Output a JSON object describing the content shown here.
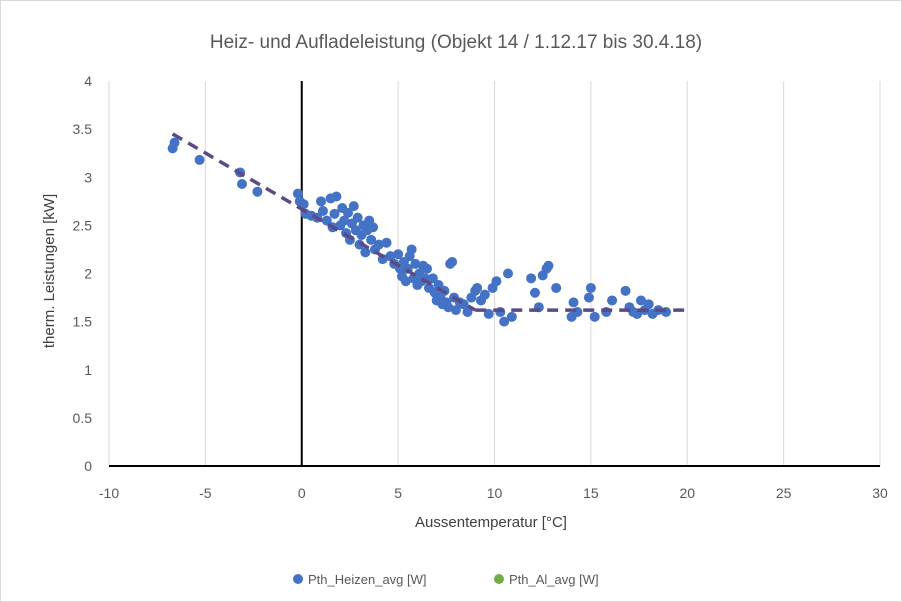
{
  "chart_data": {
    "type": "scatter",
    "title": "Heiz- und Aufladeleistung (Objekt 14 / 1.12.17 bis 30.4.18)",
    "xlabel": "Aussentemperatur [°C]",
    "ylabel": "therm. Leistungen [kW]",
    "xlim": [
      -10,
      30
    ],
    "ylim": [
      0,
      4
    ],
    "x_ticks": [
      "-10",
      "-5",
      "0",
      "5",
      "10",
      "15",
      "20",
      "25",
      "30"
    ],
    "y_ticks": [
      "0",
      "0.5",
      "1",
      "1.5",
      "2",
      "2.5",
      "3",
      "3.5",
      "4"
    ],
    "grid": "vertical",
    "legend_position": "bottom",
    "series": [
      {
        "name": "Pth_Heizen_avg [W]",
        "color": "#4472c4",
        "points": [
          [
            -6.7,
            3.3
          ],
          [
            -6.6,
            3.36
          ],
          [
            -5.3,
            3.18
          ],
          [
            -3.2,
            3.05
          ],
          [
            -3.1,
            2.93
          ],
          [
            -2.3,
            2.85
          ],
          [
            -0.2,
            2.83
          ],
          [
            -0.1,
            2.75
          ],
          [
            0.1,
            2.72
          ],
          [
            0.2,
            2.62
          ],
          [
            0.5,
            2.6
          ],
          [
            0.8,
            2.58
          ],
          [
            1.0,
            2.75
          ],
          [
            1.1,
            2.65
          ],
          [
            1.3,
            2.55
          ],
          [
            1.5,
            2.78
          ],
          [
            1.6,
            2.48
          ],
          [
            1.7,
            2.62
          ],
          [
            1.8,
            2.8
          ],
          [
            2.0,
            2.5
          ],
          [
            2.1,
            2.68
          ],
          [
            2.2,
            2.55
          ],
          [
            2.3,
            2.42
          ],
          [
            2.4,
            2.63
          ],
          [
            2.5,
            2.35
          ],
          [
            2.6,
            2.52
          ],
          [
            2.7,
            2.7
          ],
          [
            2.8,
            2.45
          ],
          [
            2.9,
            2.58
          ],
          [
            3.0,
            2.3
          ],
          [
            3.1,
            2.4
          ],
          [
            3.2,
            2.5
          ],
          [
            3.3,
            2.22
          ],
          [
            3.4,
            2.45
          ],
          [
            3.5,
            2.55
          ],
          [
            3.6,
            2.35
          ],
          [
            3.7,
            2.48
          ],
          [
            3.8,
            2.25
          ],
          [
            4.0,
            2.3
          ],
          [
            4.2,
            2.15
          ],
          [
            4.4,
            2.32
          ],
          [
            4.6,
            2.18
          ],
          [
            4.8,
            2.1
          ],
          [
            5.0,
            2.2
          ],
          [
            5.1,
            2.05
          ],
          [
            5.2,
            1.97
          ],
          [
            5.3,
            2.12
          ],
          [
            5.4,
            1.92
          ],
          [
            5.5,
            2.05
          ],
          [
            5.6,
            2.18
          ],
          [
            5.7,
            2.25
          ],
          [
            5.8,
            1.95
          ],
          [
            5.9,
            2.1
          ],
          [
            6.0,
            1.88
          ],
          [
            6.1,
            2.0
          ],
          [
            6.2,
            1.92
          ],
          [
            6.3,
            2.08
          ],
          [
            6.4,
            1.95
          ],
          [
            6.5,
            2.05
          ],
          [
            6.6,
            1.85
          ],
          [
            6.8,
            1.95
          ],
          [
            6.9,
            1.8
          ],
          [
            7.0,
            1.72
          ],
          [
            7.1,
            1.88
          ],
          [
            7.2,
            1.75
          ],
          [
            7.3,
            1.68
          ],
          [
            7.4,
            1.82
          ],
          [
            7.5,
            1.7
          ],
          [
            7.6,
            1.65
          ],
          [
            7.7,
            2.1
          ],
          [
            7.8,
            2.12
          ],
          [
            7.9,
            1.75
          ],
          [
            8.0,
            1.62
          ],
          [
            8.2,
            1.7
          ],
          [
            8.4,
            1.68
          ],
          [
            8.6,
            1.6
          ],
          [
            8.8,
            1.75
          ],
          [
            9.0,
            1.82
          ],
          [
            9.1,
            1.85
          ],
          [
            9.3,
            1.72
          ],
          [
            9.5,
            1.78
          ],
          [
            9.7,
            1.58
          ],
          [
            9.9,
            1.85
          ],
          [
            10.1,
            1.92
          ],
          [
            10.3,
            1.6
          ],
          [
            10.5,
            1.5
          ],
          [
            10.7,
            2.0
          ],
          [
            10.9,
            1.55
          ],
          [
            11.9,
            1.95
          ],
          [
            12.1,
            1.8
          ],
          [
            12.3,
            1.65
          ],
          [
            12.5,
            1.98
          ],
          [
            12.7,
            2.05
          ],
          [
            12.8,
            2.08
          ],
          [
            13.2,
            1.85
          ],
          [
            14.0,
            1.55
          ],
          [
            14.1,
            1.7
          ],
          [
            14.3,
            1.6
          ],
          [
            14.9,
            1.75
          ],
          [
            15.0,
            1.85
          ],
          [
            15.2,
            1.55
          ],
          [
            15.8,
            1.6
          ],
          [
            16.1,
            1.72
          ],
          [
            16.8,
            1.82
          ],
          [
            17.0,
            1.65
          ],
          [
            17.2,
            1.6
          ],
          [
            17.4,
            1.58
          ],
          [
            17.6,
            1.72
          ],
          [
            17.8,
            1.62
          ],
          [
            18.0,
            1.68
          ],
          [
            18.2,
            1.58
          ],
          [
            18.5,
            1.62
          ],
          [
            18.9,
            1.6
          ]
        ]
      },
      {
        "name": "Pth_Al_avg [W]",
        "color": "#70ad47",
        "points": []
      }
    ],
    "trend_line": {
      "color": "#5a4a86",
      "style": "dashed",
      "points": [
        [
          -6.7,
          3.45
        ],
        [
          9.0,
          1.62
        ],
        [
          20.0,
          1.62
        ]
      ]
    }
  }
}
